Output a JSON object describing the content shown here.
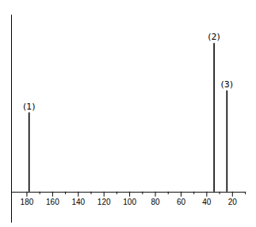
{
  "chart_data": {
    "type": "stem",
    "x": [
      178,
      34,
      24
    ],
    "values": [
      0.47,
      0.88,
      0.6
    ],
    "annotations": [
      "(1)",
      "(2)",
      "(3)"
    ],
    "color": "#000000",
    "xlim": [
      192,
      10
    ],
    "xticks": [
      180,
      160,
      140,
      120,
      100,
      80,
      60,
      40,
      20
    ],
    "xticks_minor": [
      170,
      150,
      130,
      110,
      90,
      70,
      50,
      30,
      10
    ],
    "ylim": [
      -0.18,
      1.05
    ],
    "yticks": [],
    "grid": false,
    "tick_labels": "x"
  }
}
